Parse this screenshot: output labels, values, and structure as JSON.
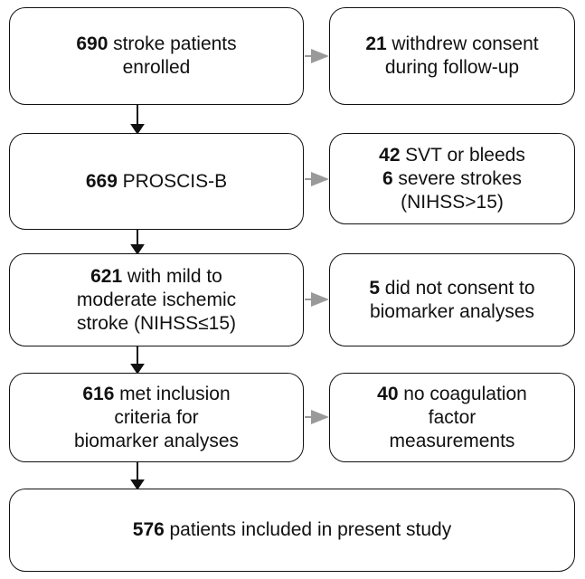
{
  "nodes": [
    {
      "lines": [
        {
          "count": "690",
          "text": "stroke patients"
        },
        {
          "text": "enrolled"
        }
      ]
    },
    {
      "lines": [
        {
          "count": "21",
          "text": "withdrew consent"
        },
        {
          "text": "during follow-up"
        }
      ]
    },
    {
      "lines": [
        {
          "count": "669",
          "text": "PROSCIS-B"
        }
      ]
    },
    {
      "lines": [
        {
          "count": "42",
          "text": "SVT or bleeds"
        },
        {
          "count": "6",
          "text": "severe strokes"
        },
        {
          "text": "(NIHSS>15)"
        }
      ]
    },
    {
      "lines": [
        {
          "count": "621",
          "text": "with mild to"
        },
        {
          "text": "moderate ischemic"
        },
        {
          "text": "stroke (NIHSS≤15)"
        }
      ]
    },
    {
      "lines": [
        {
          "count": "5",
          "text": "did not consent to"
        },
        {
          "text": "biomarker analyses"
        }
      ]
    },
    {
      "lines": [
        {
          "count": "616",
          "text": "met inclusion"
        },
        {
          "text": "criteria for"
        },
        {
          "text": "biomarker analyses"
        }
      ]
    },
    {
      "lines": [
        {
          "count": "40",
          "text": "no coagulation"
        },
        {
          "text": "factor"
        },
        {
          "text": "measurements"
        }
      ]
    },
    {
      "lines": [
        {
          "count": "576",
          "text": "patients included in present study"
        }
      ]
    }
  ]
}
